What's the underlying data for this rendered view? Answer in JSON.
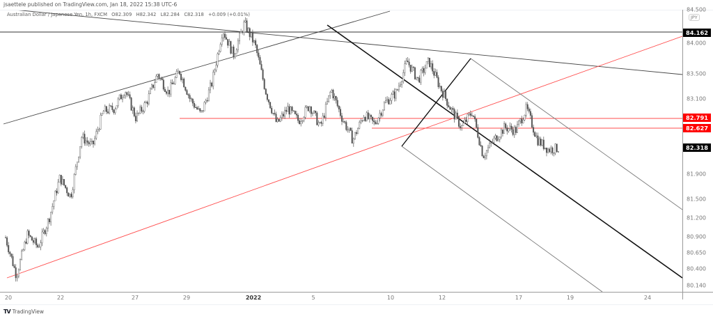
{
  "header": {
    "published": "jsaettele published on TradingView.com, Jan 18, 2022 15:38 UTC-6",
    "symbol": "Australian Dollar / Japanese Yen, 1h, FXCM",
    "ohlc": {
      "open": "O82.309",
      "high": "H82.342",
      "low": "L82.284",
      "close": "C82.318",
      "change": "+0.009 (+0.01%)"
    }
  },
  "price_axis": {
    "currency": "JPY",
    "top_partial": "84.500",
    "labels": [
      "84.000",
      "83.500",
      "83.100",
      "81.900",
      "81.500",
      "81.200",
      "80.900",
      "80.650",
      "80.400",
      "80.140"
    ],
    "tags": [
      {
        "value": "84.162",
        "bg": "#000000"
      },
      {
        "value": "82.791",
        "bg": "#ff0000"
      },
      {
        "value": "82.627",
        "bg": "#ff0000"
      },
      {
        "value": "82.318",
        "bg": "#000000"
      }
    ]
  },
  "time_axis": {
    "labels": [
      "20",
      "22",
      "27",
      "29",
      "2022",
      "5",
      "10",
      "12",
      "17",
      "19",
      "24"
    ],
    "bold_label": "2022"
  },
  "footer": {
    "brand": "TradingView",
    "logo": "TV"
  },
  "colors": {
    "candle": "#555555",
    "trendline": "#444444",
    "channel_main": "#111111",
    "channel_side": "#777777",
    "support_red": "#ff4d4d",
    "accent_tag_red": "#ff0000",
    "accent_tag_black": "#000000"
  },
  "chart_data": {
    "type": "candlestick",
    "title": "Australian Dollar / Japanese Yen, 1h, FXCM",
    "xlabel": "",
    "ylabel": "JPY",
    "ylim": [
      80.14,
      84.5
    ],
    "grid": false,
    "x": [
      "Dec 20",
      "Dec 22",
      "Dec 27",
      "Dec 29",
      "Jan 2022",
      "Jan 5",
      "Jan 10",
      "Jan 12",
      "Jan 17",
      "Jan 19",
      "Jan 24"
    ],
    "price_path": [
      {
        "date": "Dec 20",
        "price": 80.9
      },
      {
        "date": "Dec 20",
        "price": 80.3
      },
      {
        "date": "Dec 21",
        "price": 80.95
      },
      {
        "date": "Dec 21",
        "price": 80.75
      },
      {
        "date": "Dec 22",
        "price": 81.2
      },
      {
        "date": "Dec 22",
        "price": 81.85
      },
      {
        "date": "Dec 23",
        "price": 81.55
      },
      {
        "date": "Dec 23",
        "price": 82.5
      },
      {
        "date": "Dec 24",
        "price": 82.35
      },
      {
        "date": "Dec 27",
        "price": 82.9
      },
      {
        "date": "Dec 27",
        "price": 82.95
      },
      {
        "date": "Dec 28",
        "price": 83.25
      },
      {
        "date": "Dec 28",
        "price": 82.8
      },
      {
        "date": "Dec 29",
        "price": 83.05
      },
      {
        "date": "Dec 30",
        "price": 83.5
      },
      {
        "date": "Dec 30",
        "price": 83.2
      },
      {
        "date": "Dec 31",
        "price": 83.55
      },
      {
        "date": "Jan 3",
        "price": 83.1
      },
      {
        "date": "Jan 3",
        "price": 82.85
      },
      {
        "date": "Jan 4",
        "price": 83.35
      },
      {
        "date": "Jan 4",
        "price": 84.2
      },
      {
        "date": "Jan 5",
        "price": 83.8
      },
      {
        "date": "Jan 5",
        "price": 84.3
      },
      {
        "date": "Jan 6",
        "price": 83.95
      },
      {
        "date": "Jan 6",
        "price": 83.2
      },
      {
        "date": "Jan 6",
        "price": 82.7
      },
      {
        "date": "Jan 7",
        "price": 82.95
      },
      {
        "date": "Jan 7",
        "price": 82.75
      },
      {
        "date": "Jan 7",
        "price": 83.0
      },
      {
        "date": "Jan 9",
        "price": 82.65
      },
      {
        "date": "Jan 9",
        "price": 83.25
      },
      {
        "date": "Jan 10",
        "price": 82.8
      },
      {
        "date": "Jan 10",
        "price": 82.45
      },
      {
        "date": "Jan 11",
        "price": 82.85
      },
      {
        "date": "Jan 11",
        "price": 82.7
      },
      {
        "date": "Jan 12",
        "price": 83.05
      },
      {
        "date": "Jan 12",
        "price": 83.2
      },
      {
        "date": "Jan 13",
        "price": 83.7
      },
      {
        "date": "Jan 13",
        "price": 83.4
      },
      {
        "date": "Jan 14",
        "price": 83.7
      },
      {
        "date": "Jan 14",
        "price": 83.3
      },
      {
        "date": "Jan 14",
        "price": 82.95
      },
      {
        "date": "Jan 15",
        "price": 82.65
      },
      {
        "date": "Jan 16",
        "price": 82.9
      },
      {
        "date": "Jan 16",
        "price": 82.2
      },
      {
        "date": "Jan 17",
        "price": 82.45
      },
      {
        "date": "Jan 17",
        "price": 82.65
      },
      {
        "date": "Jan 18",
        "price": 82.6
      },
      {
        "date": "Jan 18",
        "price": 82.95
      },
      {
        "date": "Jan 18",
        "price": 82.45
      },
      {
        "date": "Jan 18",
        "price": 82.3
      },
      {
        "date": "Jan 18",
        "price": 82.318
      }
    ],
    "levels": [
      {
        "name": "horizontal resistance",
        "price": 84.162,
        "color": "#000000"
      },
      {
        "name": "support 1",
        "price": 82.791,
        "color": "#ff0000"
      },
      {
        "name": "support 2",
        "price": 82.627,
        "color": "#ff0000"
      }
    ],
    "last": {
      "open": 82.309,
      "high": 82.342,
      "low": 82.284,
      "close": 82.318,
      "change": 0.009,
      "change_pct": 0.01
    }
  }
}
